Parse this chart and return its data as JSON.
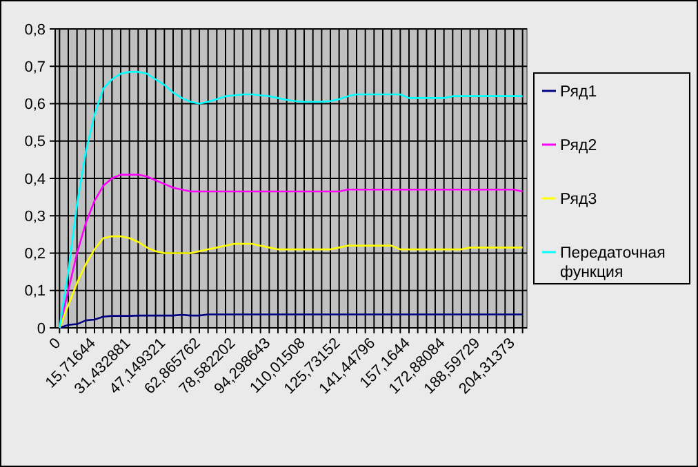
{
  "chart_data": {
    "type": "line",
    "categories": [
      "0",
      null,
      null,
      null,
      "15,71644",
      null,
      null,
      null,
      "31,432881",
      null,
      null,
      null,
      "47,149321",
      null,
      null,
      null,
      "62,865762",
      null,
      null,
      null,
      "78,582202",
      null,
      null,
      null,
      "94,298643",
      null,
      null,
      null,
      "110,01508",
      null,
      null,
      null,
      "125,73152",
      null,
      null,
      null,
      "141,44796",
      null,
      null,
      null,
      "157,1644",
      null,
      null,
      null,
      "172,88084",
      null,
      null,
      null,
      "188,59729",
      null,
      null,
      null,
      "204,31373",
      null
    ],
    "ylim": [
      0,
      0.8
    ],
    "yticks": [
      {
        "value": 0,
        "label": "0"
      },
      {
        "value": 0.1,
        "label": "0,1"
      },
      {
        "value": 0.2,
        "label": "0,2"
      },
      {
        "value": 0.3,
        "label": "0,3"
      },
      {
        "value": 0.4,
        "label": "0,4"
      },
      {
        "value": 0.5,
        "label": "0,5"
      },
      {
        "value": 0.6,
        "label": "0,6"
      },
      {
        "value": 0.7,
        "label": "0,7"
      },
      {
        "value": 0.8,
        "label": "0,8"
      }
    ],
    "grid": true,
    "legend": "right",
    "marker": "none",
    "line_style": "solid",
    "series": [
      {
        "name": "Ряд1",
        "color": "#000080",
        "values": [
          0,
          0.008,
          0.01,
          0.02,
          0.022,
          0.03,
          0.032,
          0.032,
          0.032,
          0.033,
          0.033,
          0.033,
          0.033,
          0.033,
          0.035,
          0.033,
          0.033,
          0.036,
          0.036,
          0.036,
          0.036,
          0.036,
          0.036,
          0.036,
          0.036,
          0.036,
          0.036,
          0.036,
          0.036,
          0.036,
          0.036,
          0.036,
          0.036,
          0.036,
          0.036,
          0.036,
          0.036,
          0.036,
          0.036,
          0.036,
          0.036,
          0.036,
          0.036,
          0.036,
          0.036,
          0.036,
          0.036,
          0.036,
          0.036,
          0.036,
          0.036,
          0.036,
          0.036,
          0.036
        ]
      },
      {
        "name": "Ряд2",
        "color": "#ff00ff",
        "values": [
          0,
          0.1,
          0.2,
          0.28,
          0.34,
          0.38,
          0.4,
          0.41,
          0.41,
          0.41,
          0.405,
          0.395,
          0.385,
          0.375,
          0.37,
          0.365,
          0.365,
          0.365,
          0.365,
          0.365,
          0.365,
          0.365,
          0.365,
          0.365,
          0.365,
          0.365,
          0.365,
          0.365,
          0.365,
          0.365,
          0.365,
          0.365,
          0.365,
          0.37,
          0.37,
          0.37,
          0.37,
          0.37,
          0.37,
          0.37,
          0.37,
          0.37,
          0.37,
          0.37,
          0.37,
          0.37,
          0.37,
          0.37,
          0.37,
          0.37,
          0.37,
          0.37,
          0.37,
          0.365
        ]
      },
      {
        "name": "Ряд3",
        "color": "#ffff00",
        "values": [
          0,
          0.06,
          0.12,
          0.17,
          0.21,
          0.24,
          0.245,
          0.245,
          0.24,
          0.23,
          0.215,
          0.205,
          0.2,
          0.2,
          0.2,
          0.2,
          0.205,
          0.21,
          0.215,
          0.22,
          0.225,
          0.225,
          0.225,
          0.22,
          0.215,
          0.21,
          0.21,
          0.21,
          0.21,
          0.21,
          0.21,
          0.21,
          0.215,
          0.22,
          0.22,
          0.22,
          0.22,
          0.22,
          0.22,
          0.21,
          0.21,
          0.21,
          0.21,
          0.21,
          0.21,
          0.21,
          0.21,
          0.215,
          0.215,
          0.215,
          0.215,
          0.215,
          0.215,
          0.215
        ]
      },
      {
        "name": "Передаточная функция",
        "color": "#00ffff",
        "values": [
          0,
          0.15,
          0.33,
          0.47,
          0.57,
          0.64,
          0.665,
          0.68,
          0.685,
          0.685,
          0.68,
          0.665,
          0.65,
          0.63,
          0.615,
          0.605,
          0.6,
          0.605,
          0.612,
          0.62,
          0.622,
          0.625,
          0.625,
          0.622,
          0.62,
          0.615,
          0.61,
          0.607,
          0.605,
          0.605,
          0.605,
          0.607,
          0.612,
          0.62,
          0.625,
          0.625,
          0.625,
          0.625,
          0.625,
          0.625,
          0.615,
          0.615,
          0.615,
          0.615,
          0.615,
          0.62,
          0.62,
          0.62,
          0.62,
          0.62,
          0.62,
          0.62,
          0.62,
          0.62
        ]
      }
    ]
  }
}
